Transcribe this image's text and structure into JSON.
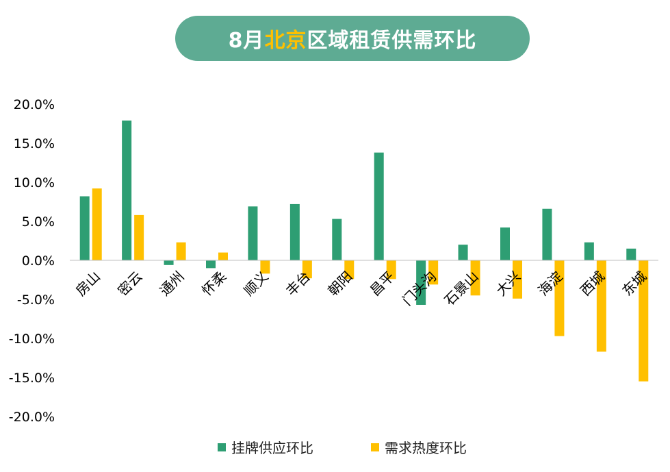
{
  "title": {
    "prefix": "8月",
    "highlight": "北京",
    "suffix": "区域租赁供需环比"
  },
  "colors": {
    "supply": "#2e9e73",
    "demand": "#ffc000",
    "title_bg": "#5eab93",
    "title_highlight": "#ffc000"
  },
  "chart_data": {
    "type": "bar",
    "categories": [
      "房山",
      "密云",
      "通州",
      "怀柔",
      "顺义",
      "丰台",
      "朝阳",
      "昌平",
      "门头沟",
      "石景山",
      "大兴",
      "海淀",
      "西城",
      "东城"
    ],
    "series": [
      {
        "name": "挂牌供应环比",
        "values": [
          8.2,
          17.9,
          -0.6,
          -1.0,
          6.9,
          7.2,
          5.3,
          13.8,
          -5.7,
          2.0,
          4.2,
          6.6,
          2.3,
          1.5
        ]
      },
      {
        "name": "需求热度环比",
        "values": [
          9.2,
          5.8,
          2.3,
          1.0,
          -1.7,
          -2.3,
          -2.4,
          -2.4,
          -3.1,
          -4.5,
          -4.9,
          -9.7,
          -11.7,
          -15.5
        ]
      }
    ],
    "ylim": [
      -20,
      20
    ],
    "yticks": [
      "20.0%",
      "15.0%",
      "10.0%",
      "5.0%",
      "0.0%",
      "-5.0%",
      "-10.0%",
      "-15.0%",
      "-20.0%"
    ],
    "legend_position": "bottom",
    "grid": false
  }
}
